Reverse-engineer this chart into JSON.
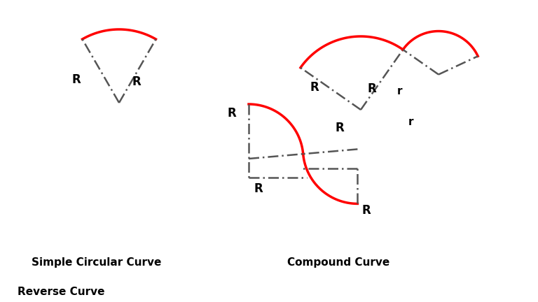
{
  "bg_color": "#ffffff",
  "rc": "#ff0000",
  "dc": "#555555",
  "tc": "#000000",
  "lwr": 2.5,
  "lwd": 1.8,
  "label1": "Simple Circular Curve",
  "label2": "Compound Curve",
  "label3": "Reverse Curve"
}
